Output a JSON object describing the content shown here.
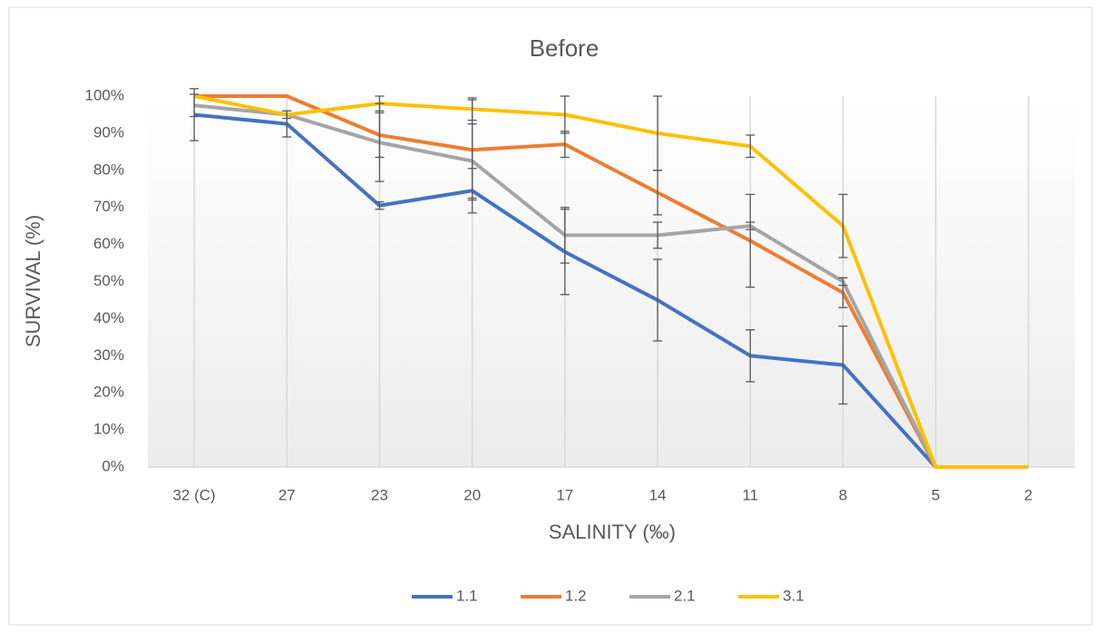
{
  "chart_data": {
    "type": "line",
    "title": "Before",
    "x_label": "SALINITY (‰)",
    "y_label": "SURVIVAL (%)",
    "categories": [
      "32 (C)",
      "27",
      "23",
      "20",
      "17",
      "14",
      "11",
      "8",
      "5",
      "2"
    ],
    "series": [
      {
        "name": "1.1",
        "color": "#4472c4",
        "values": [
          95,
          92.5,
          70.5,
          74.5,
          58,
          45,
          30,
          27.5,
          0,
          0
        ],
        "errors": [
          7,
          3.5,
          1,
          6,
          11.5,
          11,
          7,
          10.5,
          0,
          0
        ]
      },
      {
        "name": "1.2",
        "color": "#ed7d31",
        "values": [
          100,
          100,
          89.5,
          85.5,
          87,
          74,
          61,
          47,
          0,
          0
        ],
        "errors": [
          0,
          0,
          6,
          13.5,
          3.5,
          6,
          12.5,
          4,
          0,
          0
        ]
      },
      {
        "name": "2.1",
        "color": "#a5a5a5",
        "values": [
          97.5,
          95,
          87.5,
          82.5,
          62.5,
          62.5,
          65,
          50,
          0,
          0
        ],
        "errors": [
          3,
          1,
          10.5,
          10,
          7.5,
          3.5,
          1,
          1,
          0,
          0
        ]
      },
      {
        "name": "3.1",
        "color": "#ffc000",
        "values": [
          100,
          95,
          98,
          96.5,
          95,
          90,
          86.5,
          65,
          0,
          0
        ],
        "errors": [
          0,
          0,
          2,
          3,
          5,
          10,
          3,
          8.5,
          0,
          0
        ]
      }
    ],
    "ylim": [
      0,
      100
    ],
    "yticks": [
      {
        "value": 0,
        "label": "0%"
      },
      {
        "value": 10,
        "label": "10%"
      },
      {
        "value": 20,
        "label": "20%"
      },
      {
        "value": 30,
        "label": "30%"
      },
      {
        "value": 40,
        "label": "40%"
      },
      {
        "value": 50,
        "label": "50%"
      },
      {
        "value": 60,
        "label": "60%"
      },
      {
        "value": 70,
        "label": "70%"
      },
      {
        "value": 80,
        "label": "80%"
      },
      {
        "value": 90,
        "label": "90%"
      },
      {
        "value": 100,
        "label": "100%"
      }
    ],
    "grid": "x",
    "legend": "bottom"
  }
}
